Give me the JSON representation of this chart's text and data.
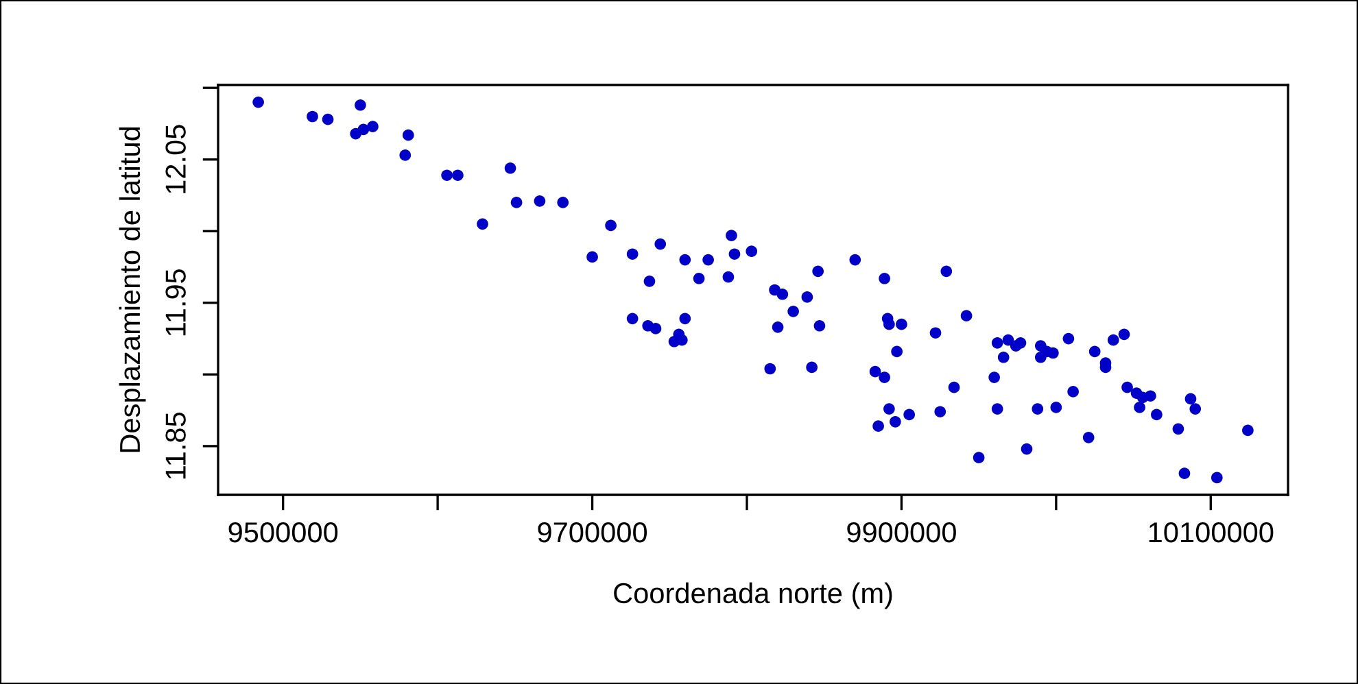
{
  "chart_data": {
    "type": "scatter",
    "xlabel": "Coordenada norte (m)",
    "ylabel": "Desplazamiento de latitud",
    "xlim": [
      9458000,
      10150000
    ],
    "ylim": [
      11.816,
      12.102
    ],
    "xticks": [
      9500000,
      {
        "value": 9600000,
        "label": null
      },
      9700000,
      {
        "value": 9800000,
        "label": null
      },
      9900000,
      {
        "value": 10000000,
        "label": null
      },
      10100000
    ],
    "yticks": [
      11.85,
      {
        "value": 11.9,
        "label": null
      },
      11.95,
      {
        "value": 12.0,
        "label": null
      },
      12.05,
      {
        "value": 12.1,
        "label": null
      }
    ],
    "grid": false,
    "legend": false,
    "marker": "circle",
    "series": [
      {
        "color": "#0000c8",
        "x": [
          9484000,
          9519000,
          9529000,
          9550000,
          9547000,
          9552000,
          9558000,
          9581000,
          9579000,
          9606000,
          9613000,
          9647000,
          9651000,
          9666000,
          9681000,
          9629000,
          9712000,
          9700000,
          9726000,
          9744000,
          9737000,
          9760000,
          9775000,
          9769000,
          9790000,
          9792000,
          9803000,
          9788000,
          9726000,
          9736000,
          9741000,
          9760000,
          9756000,
          9753000,
          9758000,
          9818000,
          9823000,
          9830000,
          9839000,
          9846000,
          9820000,
          9847000,
          9815000,
          9842000,
          9870000,
          9889000,
          9929000,
          9942000,
          9891000,
          9892000,
          9900000,
          9897000,
          9922000,
          9883000,
          9889000,
          9892000,
          9896000,
          9885000,
          9905000,
          9925000,
          9934000,
          9950000,
          9960000,
          9962000,
          9966000,
          9962000,
          9969000,
          9977000,
          9974000,
          9990000,
          9990000,
          9994000,
          9998000,
          10008000,
          9988000,
          10000000,
          9981000,
          10011000,
          10025000,
          10032000,
          10032000,
          10037000,
          10044000,
          10021000,
          10046000,
          10052000,
          10056000,
          10061000,
          10054000,
          10065000,
          10079000,
          10087000,
          10090000,
          10083000,
          10104000,
          10124000
        ],
        "values": [
          12.09,
          12.08,
          12.078,
          12.088,
          12.068,
          12.071,
          12.073,
          12.067,
          12.053,
          12.039,
          12.039,
          12.044,
          12.02,
          12.021,
          12.02,
          12.005,
          12.004,
          11.982,
          11.984,
          11.991,
          11.965,
          11.98,
          11.98,
          11.967,
          11.997,
          11.984,
          11.986,
          11.968,
          11.939,
          11.934,
          11.932,
          11.939,
          11.928,
          11.923,
          11.924,
          11.959,
          11.956,
          11.944,
          11.954,
          11.972,
          11.933,
          11.934,
          11.904,
          11.905,
          11.98,
          11.967,
          11.972,
          11.941,
          11.939,
          11.935,
          11.935,
          11.916,
          11.929,
          11.902,
          11.898,
          11.876,
          11.867,
          11.864,
          11.872,
          11.874,
          11.891,
          11.842,
          11.898,
          11.876,
          11.912,
          11.922,
          11.924,
          11.922,
          11.92,
          11.92,
          11.912,
          11.916,
          11.915,
          11.925,
          11.876,
          11.877,
          11.848,
          11.888,
          11.916,
          11.908,
          11.905,
          11.924,
          11.928,
          11.856,
          11.891,
          11.887,
          11.884,
          11.885,
          11.877,
          11.872,
          11.862,
          11.883,
          11.876,
          11.831,
          11.828,
          11.861
        ]
      }
    ]
  }
}
